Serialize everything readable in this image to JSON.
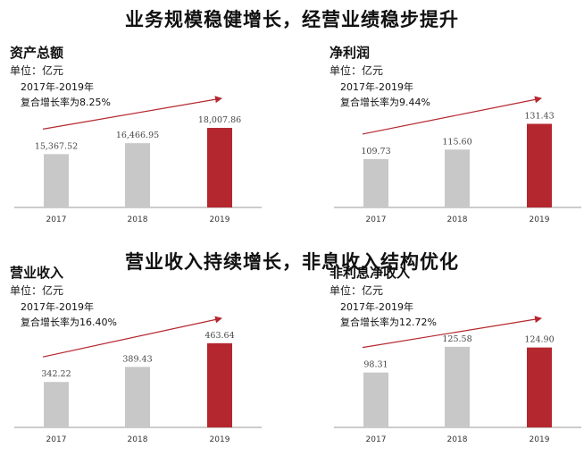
{
  "section_titles": [
    "业务规模稳健增长，经营业绩稳步提升",
    "营业收入持续增长，非息收入结构优化"
  ],
  "colors": {
    "normal_bar": "#c8c8c8",
    "highlight_bar": "#b5272e",
    "arrow": "#b5272e",
    "axis": "#9a9a9a"
  },
  "chart_data": [
    {
      "type": "bar",
      "title": "资产总额",
      "unit": "单位：亿元",
      "note_period": "2017年-2019年",
      "note_rate": "复合增长率为8.25%",
      "categories": [
        "2017",
        "2018",
        "2019"
      ],
      "values": [
        15367.52,
        16466.95,
        18007.86
      ],
      "value_labels": [
        "15,367.52",
        "16,466.95",
        "18,007.86"
      ],
      "highlight_index": 2,
      "ylim": [
        10000,
        19000
      ],
      "trend_arrow": true
    },
    {
      "type": "bar",
      "title": "净利润",
      "unit": "单位：亿元",
      "note_period": "2017年-2019年",
      "note_rate": "复合增长率为9.44%",
      "categories": [
        "2017",
        "2018",
        "2019"
      ],
      "values": [
        109.73,
        115.6,
        131.43
      ],
      "value_labels": [
        "109.73",
        "115.60",
        "131.43"
      ],
      "highlight_index": 2,
      "ylim": [
        80,
        135
      ],
      "trend_arrow": true
    },
    {
      "type": "bar",
      "title": "营业收入",
      "unit": "单位：亿元",
      "note_period": "2017年-2019年",
      "note_rate": "复合增长率为16.40%",
      "categories": [
        "2017",
        "2018",
        "2019"
      ],
      "values": [
        342.22,
        389.43,
        463.64
      ],
      "value_labels": [
        "342.22",
        "389.43",
        "463.64"
      ],
      "highlight_index": 2,
      "ylim": [
        200,
        480
      ],
      "trend_arrow": true
    },
    {
      "type": "bar",
      "title": "非利息净收入",
      "unit": "单位：亿元",
      "note_period": "2017年-2019年",
      "note_rate": "复合增长率为12.72%",
      "categories": [
        "2017",
        "2018",
        "2019"
      ],
      "values": [
        98.31,
        125.58,
        124.9
      ],
      "value_labels": [
        "98.31",
        "125.58",
        "124.90"
      ],
      "highlight_index": 2,
      "ylim": [
        40,
        135
      ],
      "trend_arrow": true
    }
  ]
}
